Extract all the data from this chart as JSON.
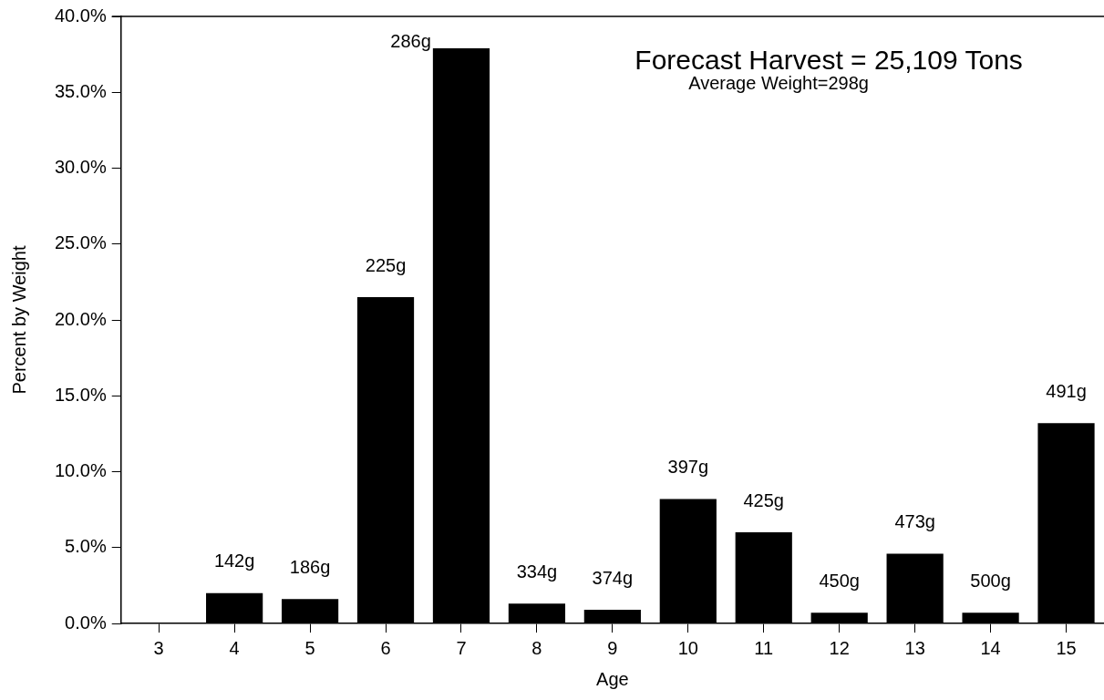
{
  "chart_data": {
    "type": "bar",
    "title": "Forecast Harvest = 25,109 Tons",
    "subtitle": "Average Weight=298g",
    "xlabel": "Age",
    "ylabel": "Percent by Weight",
    "categories": [
      "3",
      "4",
      "5",
      "6",
      "7",
      "8",
      "9",
      "10",
      "11",
      "12",
      "13",
      "14",
      "15"
    ],
    "values": [
      0,
      2.0,
      1.6,
      21.5,
      37.9,
      1.3,
      0.9,
      8.2,
      6.0,
      0.7,
      4.6,
      0.7,
      13.2
    ],
    "annotations": [
      {
        "text": "142g",
        "x": "4",
        "y": 2.0
      },
      {
        "text": "186g",
        "x": "5",
        "y": 1.6
      },
      {
        "text": "225g",
        "x": "6",
        "y": 21.5
      },
      {
        "text": "286g",
        "x": "7",
        "y": 37.9
      },
      {
        "text": "334g",
        "x": "8",
        "y": 1.3
      },
      {
        "text": "374g",
        "x": "9",
        "y": 0.9
      },
      {
        "text": "397g",
        "x": "10",
        "y": 8.2
      },
      {
        "text": "425g",
        "x": "11",
        "y": 6.0
      },
      {
        "text": "450g",
        "x": "12",
        "y": 0.7
      },
      {
        "text": "473g",
        "x": "13",
        "y": 4.6
      },
      {
        "text": "500g",
        "x": "14",
        "y": 0.7
      },
      {
        "text": "491g",
        "x": "15",
        "y": 13.2
      }
    ],
    "color": "#000000",
    "ylim": [
      0,
      40
    ],
    "yticks": [
      {
        "value": 0,
        "label": "0.0%"
      },
      {
        "value": 5,
        "label": "5.0%"
      },
      {
        "value": 10,
        "label": "10.0%"
      },
      {
        "value": 15,
        "label": "15.0%"
      },
      {
        "value": 20,
        "label": "20.0%"
      },
      {
        "value": 25,
        "label": "25.0%"
      },
      {
        "value": 30,
        "label": "30.0%"
      },
      {
        "value": 35,
        "label": "35.0%"
      },
      {
        "value": 40,
        "label": "40.0%"
      }
    ],
    "grid": false,
    "legend": false
  }
}
